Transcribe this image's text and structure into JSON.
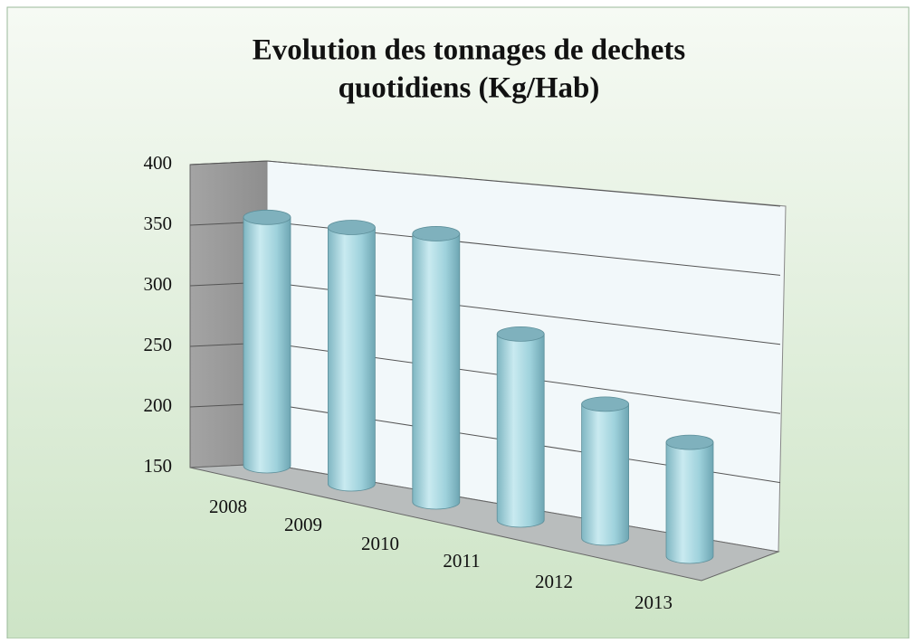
{
  "chart_data": {
    "type": "bar3d",
    "title": [
      "Evolution des tonnages de dechets",
      "quotidiens (Kg/Hab)"
    ],
    "categories": [
      "2008",
      "2009",
      "2010",
      "2011",
      "2012",
      "2013"
    ],
    "values": [
      355,
      355,
      358,
      290,
      248,
      231
    ],
    "color": "#8fc8d4",
    "ylim": [
      150,
      400
    ],
    "yticks": [
      150,
      200,
      250,
      300,
      350,
      400
    ],
    "grid": true
  }
}
